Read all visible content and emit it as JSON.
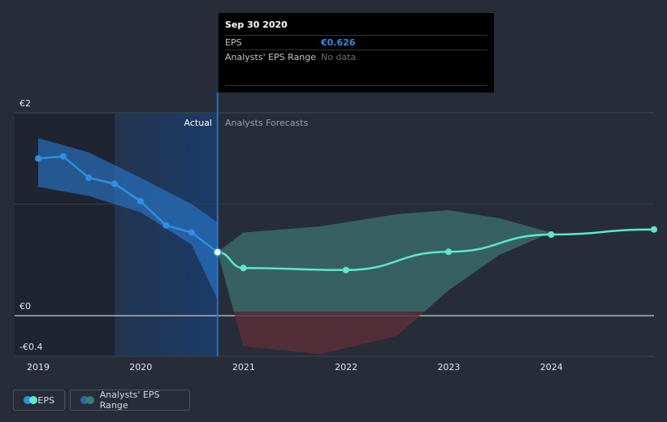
{
  "tooltip": {
    "date": "Sep 30 2020",
    "eps_label": "EPS",
    "eps_value": "€0.626",
    "range_label": "Analysts' EPS Range",
    "range_value": "No data"
  },
  "section_labels": {
    "actual": "Actual",
    "forecast": "Analysts Forecasts"
  },
  "legend": {
    "eps": "EPS",
    "range": "Analysts' EPS Range"
  },
  "colors": {
    "background": "#262d39",
    "eps_line": "#2f8fe0",
    "forecast_line": "#5de8cf",
    "actual_band": "#2a7bd1",
    "forecast_band_pos": "#3a6a68",
    "forecast_band_neg": "#5a3038"
  },
  "chart_data": {
    "type": "line",
    "x_ticks": [
      "2019",
      "2020",
      "2021",
      "2022",
      "2023",
      "2024"
    ],
    "y_ticks": [
      {
        "value": 2,
        "label": "€2"
      },
      {
        "value": 0,
        "label": "€0"
      },
      {
        "value": -0.4,
        "label": "-€0.4"
      }
    ],
    "ylim": [
      -0.4,
      2
    ],
    "xlim": [
      "2019-01-01",
      "2024-12-31"
    ],
    "grid": true,
    "highlight_date": "2020-09-30",
    "series": [
      {
        "name": "EPS",
        "role": "actual",
        "points": [
          {
            "x": "2019-01-01",
            "y": 1.55
          },
          {
            "x": "2019-03-31",
            "y": 1.57
          },
          {
            "x": "2019-06-30",
            "y": 1.36
          },
          {
            "x": "2019-09-30",
            "y": 1.3
          },
          {
            "x": "2019-12-31",
            "y": 1.13
          },
          {
            "x": "2020-03-31",
            "y": 0.89
          },
          {
            "x": "2020-06-30",
            "y": 0.82
          },
          {
            "x": "2020-09-30",
            "y": 0.626
          }
        ]
      },
      {
        "name": "EPS",
        "role": "forecast",
        "points": [
          {
            "x": "2020-09-30",
            "y": 0.626
          },
          {
            "x": "2020-12-31",
            "y": 0.47
          },
          {
            "x": "2021-12-31",
            "y": 0.45
          },
          {
            "x": "2022-12-31",
            "y": 0.63
          },
          {
            "x": "2023-12-31",
            "y": 0.8
          },
          {
            "x": "2024-12-31",
            "y": 0.85
          }
        ]
      }
    ],
    "ranges": [
      {
        "name": "Analysts' EPS Range",
        "role": "actual",
        "points": [
          {
            "x": "2019-01-01",
            "low": 1.27,
            "high": 1.75
          },
          {
            "x": "2019-06-30",
            "low": 1.18,
            "high": 1.61
          },
          {
            "x": "2019-12-31",
            "low": 1.02,
            "high": 1.36
          },
          {
            "x": "2020-06-30",
            "low": 0.7,
            "high": 1.1
          },
          {
            "x": "2020-09-30",
            "low": 0.16,
            "high": 0.92
          }
        ]
      },
      {
        "name": "Analysts' EPS Range",
        "role": "forecast",
        "points": [
          {
            "x": "2020-09-30",
            "low": 0.626,
            "high": 0.626
          },
          {
            "x": "2020-12-31",
            "low": -0.3,
            "high": 0.82
          },
          {
            "x": "2021-09-30",
            "low": -0.38,
            "high": 0.88
          },
          {
            "x": "2022-06-30",
            "low": -0.2,
            "high": 1.0
          },
          {
            "x": "2022-12-31",
            "low": 0.25,
            "high": 1.04
          },
          {
            "x": "2023-06-30",
            "low": 0.6,
            "high": 0.96
          },
          {
            "x": "2023-12-31",
            "low": 0.82,
            "high": 0.82
          }
        ]
      }
    ]
  }
}
